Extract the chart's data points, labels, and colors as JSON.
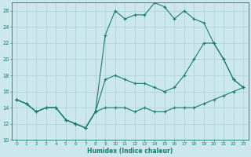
{
  "xlabel": "Humidex (Indice chaleur)",
  "bg_color": "#cce8ec",
  "line_color": "#1a7a6e",
  "grid_color": "#b0d4d8",
  "xlim": [
    -0.5,
    23.5
  ],
  "ylim": [
    10,
    27
  ],
  "xticks": [
    0,
    1,
    2,
    3,
    4,
    5,
    6,
    7,
    8,
    9,
    10,
    11,
    12,
    13,
    14,
    15,
    16,
    17,
    18,
    19,
    20,
    21,
    22,
    23
  ],
  "yticks": [
    10,
    12,
    14,
    16,
    18,
    20,
    22,
    24,
    26
  ],
  "line1_x": [
    0,
    1,
    2,
    3,
    4,
    5,
    6,
    7,
    8,
    9,
    10,
    11,
    12,
    13,
    14,
    15,
    16,
    17,
    18,
    19,
    20,
    21,
    22,
    23
  ],
  "line1_y": [
    15,
    14.5,
    13.5,
    14,
    14,
    12.5,
    12,
    11.5,
    13.5,
    14,
    14,
    14,
    13.5,
    14,
    13.5,
    13.5,
    14,
    14,
    14,
    14.5,
    15,
    15.5,
    16,
    16.5
  ],
  "line2_x": [
    0,
    1,
    2,
    3,
    4,
    5,
    6,
    7,
    8,
    9,
    10,
    11,
    12,
    13,
    14,
    15,
    16,
    17,
    18,
    19,
    20,
    21,
    22,
    23
  ],
  "line2_y": [
    15,
    14.5,
    13.5,
    14,
    14,
    12.5,
    12,
    11.5,
    13.5,
    23,
    26,
    25,
    25.5,
    25.5,
    27,
    26.5,
    25,
    26,
    25,
    24.5,
    22,
    20,
    17.5,
    16.5
  ],
  "line3_x": [
    0,
    1,
    2,
    3,
    4,
    5,
    6,
    7,
    8,
    9,
    10,
    11,
    12,
    13,
    14,
    15,
    16,
    17,
    18,
    19,
    20,
    21,
    22,
    23
  ],
  "line3_y": [
    15,
    14.5,
    13.5,
    14,
    14,
    12.5,
    12,
    11.5,
    13.5,
    17.5,
    18,
    17.5,
    17,
    17,
    16.5,
    16,
    16.5,
    18,
    20,
    22,
    22,
    20,
    17.5,
    16.5
  ]
}
